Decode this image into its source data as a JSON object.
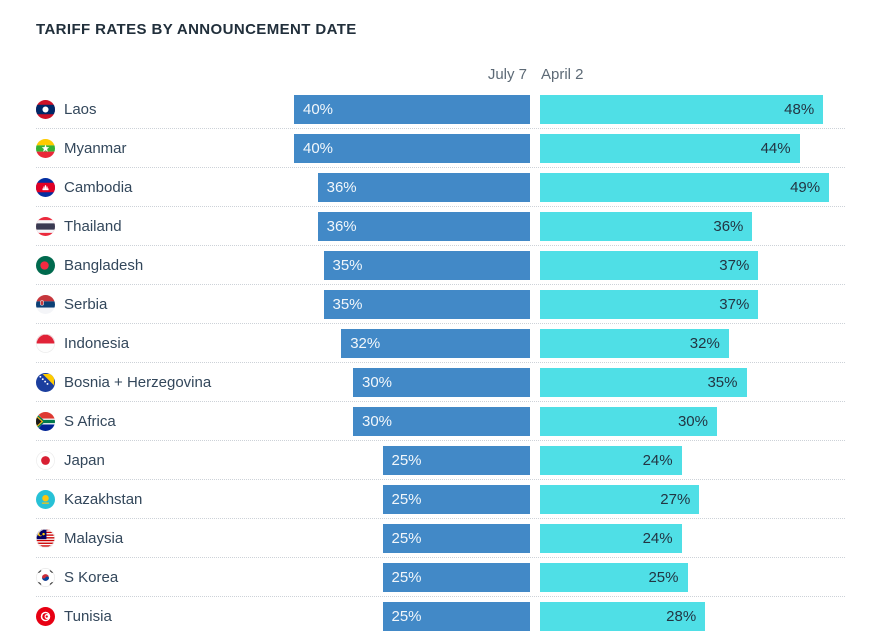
{
  "header": {
    "title": "TARIFF RATES BY ANNOUNCEMENT DATE"
  },
  "colors": {
    "july7_bar": "#4289c7",
    "april2_bar": "#4fdfe6",
    "title_text": "#212f3b",
    "country_text": "#33475b",
    "column_header_text": "#5d6a76",
    "value_on_blue": "#f2f7fb",
    "value_on_cyan": "#233543",
    "row_separator": "#cdd2d8"
  },
  "chart_data": {
    "type": "bar",
    "orientation": "horizontal",
    "title": "TARIFF RATES BY ANNOUNCEMENT DATE",
    "value_suffix": "%",
    "grid": "dotted row separators",
    "legend_position": "column headers above bars",
    "axis_range_pct": [
      0,
      49
    ],
    "categories": [
      "Laos",
      "Myanmar",
      "Cambodia",
      "Thailand",
      "Bangladesh",
      "Serbia",
      "Indonesia",
      "Bosnia + Herzegovina",
      "S Africa",
      "Japan",
      "Kazakhstan",
      "Malaysia",
      "S Korea",
      "Tunisia"
    ],
    "flag_icons": [
      "laos-flag-icon",
      "myanmar-flag-icon",
      "cambodia-flag-icon",
      "thailand-flag-icon",
      "bangladesh-flag-icon",
      "serbia-flag-icon",
      "indonesia-flag-icon",
      "bosnia-herzegovina-flag-icon",
      "s-africa-flag-icon",
      "japan-flag-icon",
      "kazakhstan-flag-icon",
      "malaysia-flag-icon",
      "s-korea-flag-icon",
      "tunisia-flag-icon"
    ],
    "series": [
      {
        "name": "July 7",
        "color": "#4289c7",
        "values": [
          40,
          40,
          36,
          36,
          35,
          35,
          32,
          30,
          30,
          25,
          25,
          25,
          25,
          25
        ]
      },
      {
        "name": "April 2",
        "color": "#4fdfe6",
        "values": [
          48,
          44,
          49,
          36,
          37,
          37,
          32,
          35,
          30,
          24,
          27,
          24,
          25,
          28
        ]
      }
    ]
  }
}
